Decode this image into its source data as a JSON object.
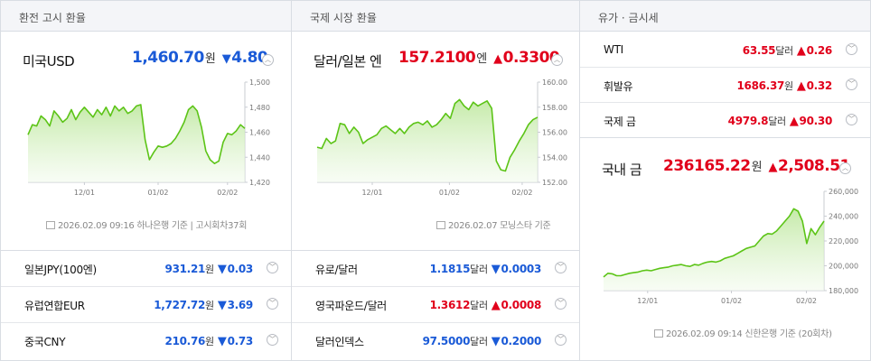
{
  "panel1": {
    "title": "환전 고시 환율",
    "main": {
      "name": "미국USD",
      "value": "1,460.70",
      "unit": "원",
      "arrow": "▼",
      "change": "4.80",
      "direction": "down"
    },
    "chart": {
      "type": "line",
      "y_ticks": [
        "1,500",
        "1,480",
        "1,460",
        "1,440",
        "1,420"
      ],
      "x_ticks": [
        "12/01",
        "01/02",
        "02/02"
      ],
      "ylim": [
        1420,
        1500
      ],
      "values": [
        1458,
        1466,
        1465,
        1473,
        1470,
        1465,
        1477,
        1473,
        1468,
        1471,
        1478,
        1470,
        1476,
        1480,
        1476,
        1472,
        1478,
        1474,
        1480,
        1473,
        1481,
        1477,
        1480,
        1475,
        1477,
        1481,
        1482,
        1454,
        1438,
        1444,
        1449,
        1448,
        1449,
        1451,
        1455,
        1461,
        1468,
        1478,
        1481,
        1477,
        1464,
        1445,
        1438,
        1435,
        1437,
        1452,
        1459,
        1458,
        1461,
        1466,
        1463
      ]
    },
    "source": {
      "date": "2026.02.09 09:16",
      "bank": "하나은행",
      "basis": "기준",
      "round": "고시회차37회"
    },
    "list": [
      {
        "name": "일본JPY(100엔)",
        "value": "931.21",
        "unit": "원",
        "arrow": "▼",
        "change": "0.03",
        "direction": "down"
      },
      {
        "name": "유럽연합EUR",
        "value": "1,727.72",
        "unit": "원",
        "arrow": "▼",
        "change": "3.69",
        "direction": "down"
      },
      {
        "name": "중국CNY",
        "value": "210.76",
        "unit": "원",
        "arrow": "▼",
        "change": "0.73",
        "direction": "down"
      }
    ]
  },
  "panel2": {
    "title": "국제 시장 환율",
    "main": {
      "name": "달러/일본 엔",
      "value": "157.2100",
      "unit": "엔",
      "arrow": "▲",
      "change": "0.3300",
      "direction": "up"
    },
    "chart": {
      "type": "line",
      "y_ticks": [
        "160.00",
        "158.00",
        "156.00",
        "154.00",
        "152.00"
      ],
      "x_ticks": [
        "12/01",
        "01/02",
        "02/02"
      ],
      "ylim": [
        152,
        160
      ],
      "values": [
        154.8,
        154.7,
        155.5,
        155.1,
        155.3,
        156.7,
        156.6,
        155.9,
        156.4,
        156.0,
        155.1,
        155.4,
        155.6,
        155.8,
        156.3,
        156.5,
        156.2,
        155.9,
        156.3,
        155.9,
        156.4,
        156.7,
        156.8,
        156.6,
        156.9,
        156.4,
        156.6,
        157.0,
        157.5,
        157.1,
        158.3,
        158.6,
        158.1,
        157.8,
        158.4,
        158.1,
        158.3,
        158.5,
        157.9,
        153.7,
        153.0,
        152.9,
        154.0,
        154.6,
        155.3,
        155.9,
        156.6,
        157.0,
        157.2
      ]
    },
    "source": {
      "date": "2026.02.07",
      "bank": "모닝스타",
      "basis": "기준"
    },
    "list": [
      {
        "name": "유로/달러",
        "value": "1.1815",
        "unit": "달러",
        "arrow": "▼",
        "change": "0.0003",
        "direction": "down"
      },
      {
        "name": "영국파운드/달러",
        "value": "1.3612",
        "unit": "달러",
        "arrow": "▲",
        "change": "0.0008",
        "direction": "up"
      },
      {
        "name": "달러인덱스",
        "value": "97.5000",
        "unit": "달러",
        "arrow": "▼",
        "change": "0.2000",
        "direction": "down"
      }
    ]
  },
  "panel3": {
    "title": "유가 · 금시세",
    "list": [
      {
        "name": "WTI",
        "value": "63.55",
        "unit": "달러",
        "arrow": "▲",
        "change": "0.26",
        "direction": "up"
      },
      {
        "name": "휘발유",
        "value": "1686.37",
        "unit": "원",
        "arrow": "▲",
        "change": "0.32",
        "direction": "up"
      },
      {
        "name": "국제 금",
        "value": "4979.8",
        "unit": "달러",
        "arrow": "▲",
        "change": "90.30",
        "direction": "up"
      }
    ],
    "main": {
      "name": "국내 금",
      "value": "236165.22",
      "unit": "원",
      "arrow": "▲",
      "change": "2,508.51",
      "direction": "up"
    },
    "chart": {
      "type": "area",
      "y_ticks": [
        "260,000",
        "240,000",
        "220,000",
        "200,000",
        "180,000"
      ],
      "x_ticks": [
        "12/01",
        "01/02",
        "02/02"
      ],
      "ylim": [
        180000,
        260000
      ],
      "values": [
        191000,
        194000,
        193500,
        192000,
        192000,
        193000,
        194000,
        194500,
        195000,
        196000,
        196500,
        196000,
        197000,
        198000,
        198500,
        199000,
        200000,
        200500,
        201000,
        200000,
        199500,
        201000,
        200500,
        202000,
        203000,
        203500,
        203000,
        204000,
        206000,
        207000,
        208000,
        210000,
        212000,
        214000,
        215000,
        216000,
        220000,
        224000,
        226000,
        225500,
        228000,
        232000,
        236000,
        240000,
        246000,
        244000,
        236000,
        218000,
        230000,
        225000,
        231000,
        236000
      ]
    },
    "source": {
      "date": "2026.02.09 09:14",
      "bank": "신한은행",
      "basis": "기준",
      "round": "(20회차)"
    }
  }
}
